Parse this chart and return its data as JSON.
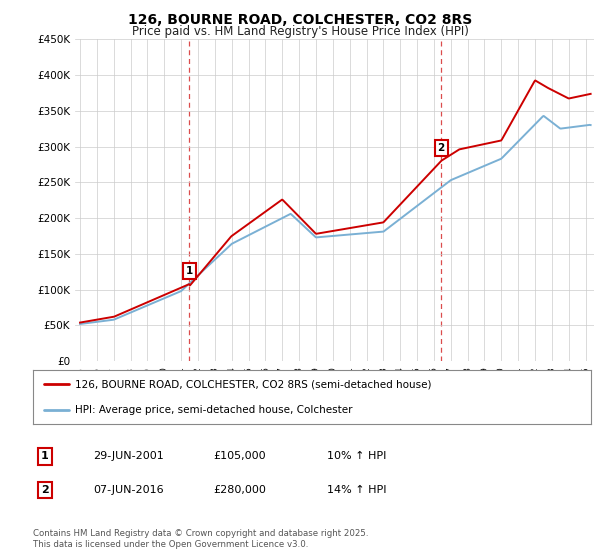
{
  "title": "126, BOURNE ROAD, COLCHESTER, CO2 8RS",
  "subtitle": "Price paid vs. HM Land Registry's House Price Index (HPI)",
  "title_fontsize": 10,
  "subtitle_fontsize": 8.5,
  "ylim": [
    0,
    450000
  ],
  "xlim_start": 1994.7,
  "xlim_end": 2025.5,
  "sale1_year": 2001.49,
  "sale1_price": 105000,
  "sale1_date": "29-JUN-2001",
  "sale1_pct": "10%",
  "sale2_year": 2016.43,
  "sale2_price": 280000,
  "sale2_date": "07-JUN-2016",
  "sale2_pct": "14%",
  "red_color": "#cc0000",
  "blue_color": "#7ab0d4",
  "vline_color": "#cc0000",
  "legend_label_red": "126, BOURNE ROAD, COLCHESTER, CO2 8RS (semi-detached house)",
  "legend_label_blue": "HPI: Average price, semi-detached house, Colchester",
  "footer": "Contains HM Land Registry data © Crown copyright and database right 2025.\nThis data is licensed under the Open Government Licence v3.0.",
  "background_color": "#ffffff",
  "grid_color": "#cccccc",
  "ytick_labels": [
    "£0",
    "£50K",
    "£100K",
    "£150K",
    "£200K",
    "£250K",
    "£300K",
    "£350K",
    "£400K",
    "£450K"
  ],
  "ytick_values": [
    0,
    50000,
    100000,
    150000,
    200000,
    250000,
    300000,
    350000,
    400000,
    450000
  ],
  "xtick_years": [
    1995,
    1996,
    1997,
    1998,
    1999,
    2000,
    2001,
    2002,
    2003,
    2004,
    2005,
    2006,
    2007,
    2008,
    2009,
    2010,
    2011,
    2012,
    2013,
    2014,
    2015,
    2016,
    2017,
    2018,
    2019,
    2020,
    2021,
    2022,
    2023,
    2024,
    2025
  ]
}
